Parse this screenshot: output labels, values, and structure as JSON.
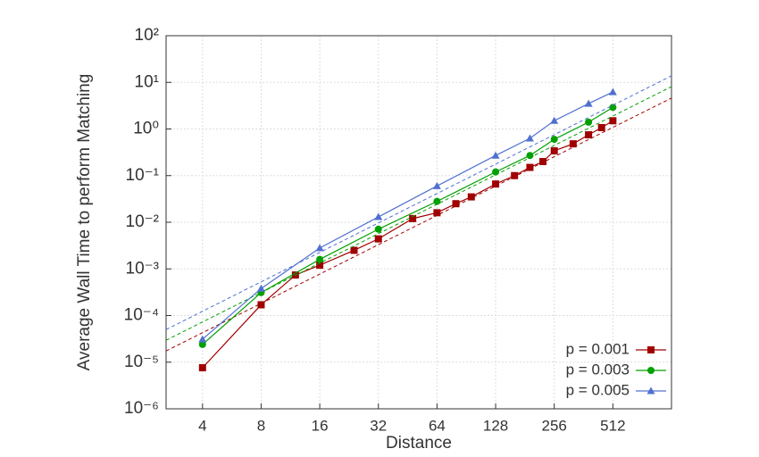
{
  "chart_data": {
    "type": "line",
    "xlabel": "Distance",
    "ylabel": "Average Wall Time to perform Matching",
    "xlog": 2,
    "ylog": 10,
    "grid": true,
    "legend": "lower right",
    "xlim": [
      2.6,
      1024
    ],
    "ylim": [
      1e-06,
      100
    ],
    "xticks": [
      4,
      8,
      16,
      32,
      64,
      128,
      256,
      512
    ],
    "yticks": [
      {
        "value": 1e-06,
        "label": "10⁻⁶"
      },
      {
        "value": 1e-05,
        "label": "10⁻⁵"
      },
      {
        "value": 0.0001,
        "label": "10⁻⁴"
      },
      {
        "value": 0.001,
        "label": "10⁻³"
      },
      {
        "value": 0.01,
        "label": "10⁻²"
      },
      {
        "value": 0.1,
        "label": "10⁻¹"
      },
      {
        "value": 1,
        "label": "10⁰"
      },
      {
        "value": 10,
        "label": "10¹"
      },
      {
        "value": 100,
        "label": "10²"
      }
    ],
    "series": [
      {
        "name": "p = 0.001",
        "color": "#a00000",
        "marker": "square",
        "x": [
          4,
          8,
          12,
          16,
          24,
          32,
          48,
          64,
          80,
          96,
          128,
          160,
          192,
          224,
          256,
          320,
          384,
          448,
          512
        ],
        "values": [
          7.6e-06,
          0.00017,
          0.00074,
          0.0012,
          0.0025,
          0.0044,
          0.012,
          0.016,
          0.025,
          0.035,
          0.066,
          0.1,
          0.15,
          0.2,
          0.34,
          0.48,
          0.75,
          1.07,
          1.5
        ],
        "fit": {
          "x": [
            2.6,
            1024
          ],
          "values": [
            1.74e-05,
            4.6
          ]
        }
      },
      {
        "name": "p = 0.003",
        "color": "#00a000",
        "marker": "circle",
        "x": [
          4,
          8,
          16,
          32,
          64,
          128,
          192,
          256,
          384,
          512
        ],
        "values": [
          2.4e-05,
          0.00031,
          0.0016,
          0.0071,
          0.028,
          0.12,
          0.27,
          0.6,
          1.4,
          2.9
        ],
        "fit": {
          "x": [
            2.6,
            1024
          ],
          "values": [
            2.95e-05,
            8.1
          ]
        }
      },
      {
        "name": "p = 0.005",
        "color": "#5070d0",
        "marker": "triangle",
        "x": [
          4,
          8,
          16,
          32,
          64,
          128,
          192,
          256,
          384,
          512
        ],
        "values": [
          3.1e-05,
          0.00038,
          0.0028,
          0.013,
          0.06,
          0.27,
          0.63,
          1.5,
          3.5,
          6.2
        ],
        "fit": {
          "x": [
            2.6,
            1024
          ],
          "values": [
            5e-05,
            13.8
          ]
        }
      }
    ]
  }
}
